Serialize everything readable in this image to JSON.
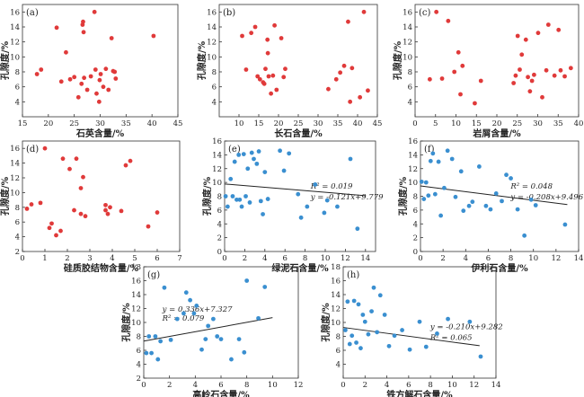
{
  "chart_data": [
    {
      "type": "scatter",
      "panel_label": "(a)",
      "xlabel": "石英含量/%",
      "ylabel": "孔隙度/%",
      "xlim": [
        15,
        45
      ],
      "ylim": [
        2,
        17
      ],
      "xticks": [
        15,
        20,
        25,
        30,
        35,
        40,
        45
      ],
      "yticks": [
        4,
        6,
        8,
        10,
        12,
        14,
        16
      ],
      "color": "#e03a3a",
      "points": [
        [
          17.8,
          7.7
        ],
        [
          18.6,
          8.3
        ],
        [
          21.6,
          13.9
        ],
        [
          22.5,
          6.7
        ],
        [
          23.4,
          10.6
        ],
        [
          24.2,
          7.0
        ],
        [
          25.0,
          7.3
        ],
        [
          25.8,
          4.6
        ],
        [
          26.4,
          6.4
        ],
        [
          26.6,
          14.3
        ],
        [
          26.7,
          14.7
        ],
        [
          26.8,
          13.3
        ],
        [
          26.9,
          7.2
        ],
        [
          27.5,
          5.6
        ],
        [
          28.2,
          7.4
        ],
        [
          28.9,
          16.0
        ],
        [
          29.1,
          8.3
        ],
        [
          29.3,
          5.1
        ],
        [
          29.8,
          4.0
        ],
        [
          29.9,
          6.9
        ],
        [
          30.1,
          7.7
        ],
        [
          30.6,
          6.0
        ],
        [
          31.1,
          8.4
        ],
        [
          31.6,
          5.6
        ],
        [
          32.2,
          12.5
        ],
        [
          32.5,
          8.1
        ],
        [
          32.8,
          8.0
        ],
        [
          33.0,
          7.1
        ],
        [
          40.3,
          12.8
        ]
      ]
    },
    {
      "type": "scatter",
      "panel_label": "(b)",
      "xlabel": "长石含量/%",
      "ylabel": "孔隙度/%",
      "xlim": [
        5,
        45
      ],
      "ylim": [
        2,
        17
      ],
      "xticks": [
        10,
        15,
        20,
        25,
        30,
        35,
        40,
        45
      ],
      "yticks": [
        4,
        6,
        8,
        10,
        12,
        14,
        16
      ],
      "color": "#e03a3a",
      "points": [
        [
          10.8,
          12.8
        ],
        [
          11.8,
          8.3
        ],
        [
          13.1,
          13.2
        ],
        [
          14.1,
          14.0
        ],
        [
          14.7,
          7.4
        ],
        [
          15.3,
          7.0
        ],
        [
          16.1,
          6.6
        ],
        [
          16.4,
          6.4
        ],
        [
          16.7,
          8.4
        ],
        [
          17.2,
          12.3
        ],
        [
          17.3,
          10.5
        ],
        [
          17.5,
          7.4
        ],
        [
          18.1,
          5.1
        ],
        [
          18.6,
          7.5
        ],
        [
          19.0,
          14.2
        ],
        [
          19.5,
          5.6
        ],
        [
          20.7,
          12.5
        ],
        [
          21.3,
          7.3
        ],
        [
          21.7,
          8.4
        ],
        [
          32.6,
          5.7
        ],
        [
          34.6,
          7.0
        ],
        [
          35.6,
          7.9
        ],
        [
          36.6,
          8.8
        ],
        [
          37.6,
          14.7
        ],
        [
          38.1,
          4.0
        ],
        [
          38.6,
          8.5
        ],
        [
          40.6,
          4.6
        ],
        [
          41.6,
          16.0
        ],
        [
          42.6,
          5.5
        ]
      ]
    },
    {
      "type": "scatter",
      "panel_label": "(c)",
      "xlabel": "岩屑含量/%",
      "ylabel": "孔隙度/%",
      "xlim": [
        0,
        40
      ],
      "ylim": [
        2,
        17
      ],
      "xticks": [
        0,
        5,
        10,
        15,
        20,
        25,
        30,
        35,
        40
      ],
      "yticks": [
        4,
        6,
        8,
        10,
        12,
        14,
        16
      ],
      "color": "#e03a3a",
      "points": [
        [
          3.6,
          7.0
        ],
        [
          5.2,
          16.0
        ],
        [
          6.6,
          7.1
        ],
        [
          8.1,
          14.8
        ],
        [
          9.6,
          8.0
        ],
        [
          10.6,
          10.6
        ],
        [
          11.1,
          5.0
        ],
        [
          11.6,
          8.8
        ],
        [
          14.6,
          3.8
        ],
        [
          16.1,
          6.8
        ],
        [
          24.1,
          6.5
        ],
        [
          24.6,
          7.5
        ],
        [
          25.1,
          12.8
        ],
        [
          25.6,
          8.3
        ],
        [
          26.1,
          10.3
        ],
        [
          27.1,
          12.3
        ],
        [
          27.6,
          7.3
        ],
        [
          28.1,
          5.4
        ],
        [
          28.6,
          6.8
        ],
        [
          29.1,
          7.6
        ],
        [
          30.1,
          13.2
        ],
        [
          31.1,
          4.6
        ],
        [
          32.1,
          8.2
        ],
        [
          32.6,
          14.3
        ],
        [
          34.1,
          7.5
        ],
        [
          35.1,
          13.6
        ],
        [
          35.6,
          8.2
        ],
        [
          36.6,
          7.4
        ],
        [
          38.1,
          8.5
        ]
      ]
    },
    {
      "type": "scatter",
      "panel_label": "(d)",
      "xlabel": "硅质胶结物含量/%",
      "ylabel": "孔隙度/%",
      "xlim": [
        0,
        7
      ],
      "ylim": [
        2,
        17
      ],
      "xticks": [
        0,
        1,
        2,
        3,
        4,
        5,
        6,
        7
      ],
      "yticks": [
        2,
        4,
        6,
        8,
        10,
        12,
        14,
        16
      ],
      "color": "#e03a3a",
      "points": [
        [
          0.2,
          7.8
        ],
        [
          0.4,
          8.4
        ],
        [
          0.8,
          8.6
        ],
        [
          1.0,
          16.0
        ],
        [
          1.2,
          5.2
        ],
        [
          1.3,
          5.8
        ],
        [
          1.5,
          4.2
        ],
        [
          1.7,
          4.8
        ],
        [
          1.8,
          14.6
        ],
        [
          2.1,
          13.2
        ],
        [
          2.3,
          7.6
        ],
        [
          2.4,
          14.6
        ],
        [
          2.6,
          10.6
        ],
        [
          2.6,
          7.1
        ],
        [
          2.7,
          12.1
        ],
        [
          2.8,
          6.8
        ],
        [
          3.7,
          8.3
        ],
        [
          3.7,
          7.6
        ],
        [
          3.8,
          7.1
        ],
        [
          3.9,
          8.0
        ],
        [
          4.4,
          7.5
        ],
        [
          4.6,
          13.7
        ],
        [
          4.8,
          14.3
        ],
        [
          5.6,
          5.4
        ],
        [
          6.0,
          7.3
        ]
      ]
    },
    {
      "type": "scatter",
      "panel_label": "(e)",
      "xlabel": "绿泥石含量/%",
      "ylabel": "孔隙度/%",
      "xlim": [
        0,
        15
      ],
      "ylim": [
        0,
        16
      ],
      "xticks": [
        0,
        2,
        4,
        6,
        8,
        10,
        12,
        14
      ],
      "yticks": [
        0,
        2,
        4,
        6,
        8,
        10,
        12,
        14,
        16
      ],
      "color": "#3a8fd0",
      "trendline": {
        "slope": -0.121,
        "intercept": 9.779,
        "x_range": [
          0,
          14
        ]
      },
      "equation": "y = -0.121x+9.779",
      "r2_label": "R² = 0.019",
      "points": [
        [
          0.1,
          8.0
        ],
        [
          0.3,
          6.5
        ],
        [
          0.6,
          10.5
        ],
        [
          0.8,
          8.0
        ],
        [
          1.0,
          13.0
        ],
        [
          1.2,
          7.5
        ],
        [
          1.4,
          14.0
        ],
        [
          1.5,
          7.5
        ],
        [
          1.7,
          6.5
        ],
        [
          1.9,
          14.1
        ],
        [
          2.1,
          8.0
        ],
        [
          2.3,
          12.0
        ],
        [
          2.5,
          7.1
        ],
        [
          2.7,
          14.3
        ],
        [
          2.9,
          13.4
        ],
        [
          3.2,
          12.7
        ],
        [
          3.4,
          14.5
        ],
        [
          3.6,
          7.3
        ],
        [
          3.8,
          5.4
        ],
        [
          4.0,
          11.5
        ],
        [
          4.3,
          7.6
        ],
        [
          5.5,
          14.6
        ],
        [
          5.9,
          11.7
        ],
        [
          6.4,
          14.2
        ],
        [
          7.3,
          8.3
        ],
        [
          7.6,
          4.9
        ],
        [
          8.2,
          6.5
        ],
        [
          9.0,
          9.7
        ],
        [
          9.9,
          5.6
        ],
        [
          10.2,
          7.4
        ],
        [
          11.2,
          6.5
        ],
        [
          12.5,
          13.4
        ],
        [
          13.2,
          3.3
        ]
      ]
    },
    {
      "type": "scatter",
      "panel_label": "(f)",
      "xlabel": "伊利石含量/%",
      "ylabel": "孔隙度/%",
      "xlim": [
        0,
        14
      ],
      "ylim": [
        0,
        16
      ],
      "xticks": [
        0,
        2,
        4,
        6,
        8,
        10,
        12,
        14
      ],
      "yticks": [
        0,
        2,
        4,
        6,
        8,
        10,
        12,
        14,
        16
      ],
      "color": "#3a8fd0",
      "trendline": {
        "slope": -0.208,
        "intercept": 9.496,
        "x_range": [
          0,
          13
        ]
      },
      "equation": "y = -0.208x+9.496",
      "r2_label": "R² = 0.048",
      "points": [
        [
          0.1,
          10.1
        ],
        [
          0.3,
          7.6
        ],
        [
          0.5,
          10.0
        ],
        [
          0.7,
          8.1
        ],
        [
          0.9,
          13.1
        ],
        [
          1.1,
          14.2
        ],
        [
          1.3,
          8.3
        ],
        [
          1.6,
          13.0
        ],
        [
          1.8,
          5.2
        ],
        [
          2.1,
          9.2
        ],
        [
          2.4,
          14.6
        ],
        [
          2.8,
          13.4
        ],
        [
          3.1,
          7.9
        ],
        [
          3.6,
          11.6
        ],
        [
          3.8,
          5.9
        ],
        [
          4.3,
          6.6
        ],
        [
          4.6,
          7.2
        ],
        [
          5.2,
          12.3
        ],
        [
          5.8,
          6.6
        ],
        [
          6.2,
          6.1
        ],
        [
          6.7,
          8.4
        ],
        [
          7.2,
          7.3
        ],
        [
          7.6,
          11.1
        ],
        [
          8.0,
          10.6
        ],
        [
          8.6,
          6.1
        ],
        [
          9.2,
          2.3
        ],
        [
          9.8,
          7.5
        ],
        [
          10.2,
          6.7
        ],
        [
          12.8,
          3.9
        ]
      ]
    },
    {
      "type": "scatter",
      "panel_label": "(g)",
      "xlabel": "高岭石含量/%",
      "ylabel": "孔隙度/%",
      "xlim": [
        0,
        12
      ],
      "ylim": [
        2,
        18
      ],
      "xticks": [
        0,
        2,
        4,
        6,
        8,
        10,
        12
      ],
      "yticks": [
        2,
        4,
        6,
        8,
        10,
        12,
        14,
        16,
        18
      ],
      "color": "#3a8fd0",
      "trendline": {
        "slope": 0.336,
        "intercept": 7.327,
        "x_range": [
          0,
          10
        ]
      },
      "equation": "y = 0.336x+7.327",
      "r2_label": "R² = 0.079",
      "points": [
        [
          0.2,
          5.6
        ],
        [
          0.4,
          8.0
        ],
        [
          0.6,
          5.6
        ],
        [
          0.9,
          8.0
        ],
        [
          1.1,
          4.7
        ],
        [
          1.3,
          7.3
        ],
        [
          1.6,
          15.0
        ],
        [
          2.1,
          7.5
        ],
        [
          2.6,
          10.5
        ],
        [
          3.1,
          11.3
        ],
        [
          3.3,
          14.3
        ],
        [
          3.6,
          13.2
        ],
        [
          3.9,
          11.3
        ],
        [
          4.1,
          12.4
        ],
        [
          4.5,
          6.1
        ],
        [
          4.8,
          7.6
        ],
        [
          5.0,
          9.5
        ],
        [
          5.4,
          10.5
        ],
        [
          5.7,
          8.0
        ],
        [
          6.0,
          7.6
        ],
        [
          6.8,
          4.7
        ],
        [
          7.4,
          7.6
        ],
        [
          7.8,
          5.7
        ],
        [
          8.0,
          16.0
        ],
        [
          8.9,
          10.6
        ],
        [
          9.4,
          15.1
        ]
      ]
    },
    {
      "type": "scatter",
      "panel_label": "(h)",
      "xlabel": "铁方解石含量/%",
      "ylabel": "孔隙度/%",
      "xlim": [
        0,
        14
      ],
      "ylim": [
        2,
        18
      ],
      "xticks": [
        0,
        2,
        4,
        6,
        8,
        10,
        12,
        14
      ],
      "yticks": [
        4,
        6,
        8,
        10,
        12,
        14,
        16,
        18
      ],
      "color": "#3a8fd0",
      "trendline": {
        "slope": -0.21,
        "intercept": 9.282,
        "x_range": [
          0,
          12.5
        ]
      },
      "equation": "y = -0.210x+9.282",
      "r2_label": "R² = 0.065",
      "points": [
        [
          0.2,
          8.9
        ],
        [
          0.4,
          13.0
        ],
        [
          0.6,
          6.9
        ],
        [
          0.8,
          8.1
        ],
        [
          1.0,
          13.1
        ],
        [
          1.2,
          7.1
        ],
        [
          1.4,
          12.6
        ],
        [
          1.6,
          6.3
        ],
        [
          1.8,
          11.1
        ],
        [
          2.0,
          10.1
        ],
        [
          2.3,
          8.3
        ],
        [
          2.6,
          11.6
        ],
        [
          2.8,
          15.0
        ],
        [
          3.1,
          8.6
        ],
        [
          3.4,
          13.9
        ],
        [
          3.8,
          11.1
        ],
        [
          4.2,
          6.6
        ],
        [
          4.7,
          8.1
        ],
        [
          5.4,
          8.9
        ],
        [
          6.1,
          6.1
        ],
        [
          7.0,
          10.1
        ],
        [
          7.6,
          6.5
        ],
        [
          8.6,
          8.4
        ],
        [
          9.6,
          10.5
        ],
        [
          11.6,
          10.1
        ],
        [
          12.6,
          5.1
        ]
      ]
    }
  ]
}
